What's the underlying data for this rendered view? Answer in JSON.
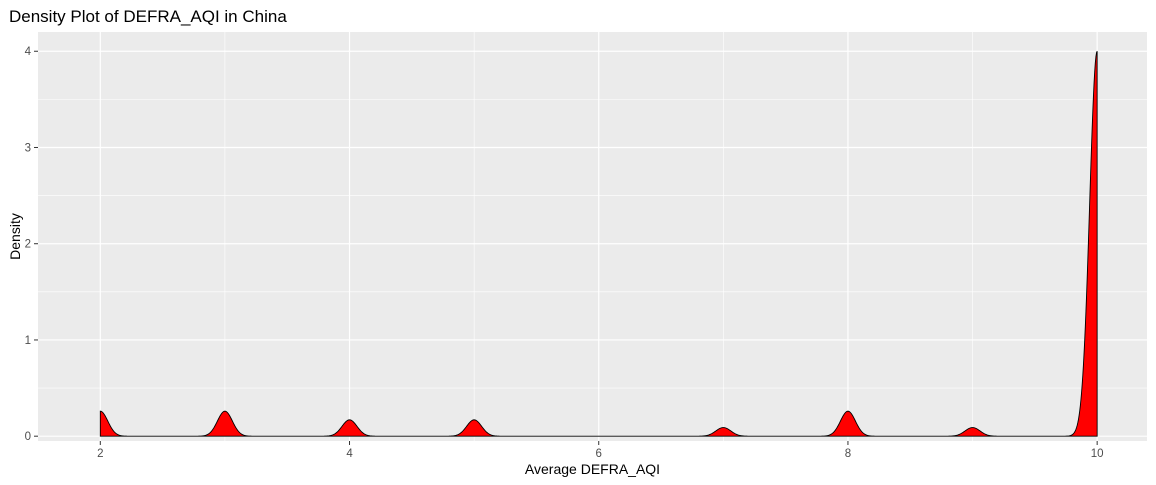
{
  "chart_data": {
    "type": "area",
    "title": "Density Plot of DEFRA_AQI in China",
    "xlabel": "Average DEFRA_AQI",
    "ylabel": "Density",
    "xlim": [
      1.5,
      10.4
    ],
    "ylim": [
      -0.05,
      4.2
    ],
    "x_ticks": [
      2,
      4,
      6,
      8,
      10
    ],
    "x_tick_labels": [
      "2",
      "4",
      "6",
      "8",
      "10"
    ],
    "y_ticks": [
      0,
      1,
      2,
      3,
      4
    ],
    "y_tick_labels": [
      "0",
      "1",
      "2",
      "3",
      "4"
    ],
    "grid": true,
    "fill_color": "#ff0000",
    "line_color": "#000000",
    "panel_background": "#ebebeb",
    "grid_color": "#ffffff",
    "data_range": [
      2,
      10
    ],
    "bandwidth": 0.06,
    "peaks": [
      {
        "x": 2,
        "density": 0.26
      },
      {
        "x": 3,
        "density": 0.26
      },
      {
        "x": 4,
        "density": 0.17
      },
      {
        "x": 5,
        "density": 0.17
      },
      {
        "x": 7,
        "density": 0.09
      },
      {
        "x": 8,
        "density": 0.26
      },
      {
        "x": 9,
        "density": 0.09
      },
      {
        "x": 10,
        "density": 4.0
      }
    ]
  }
}
